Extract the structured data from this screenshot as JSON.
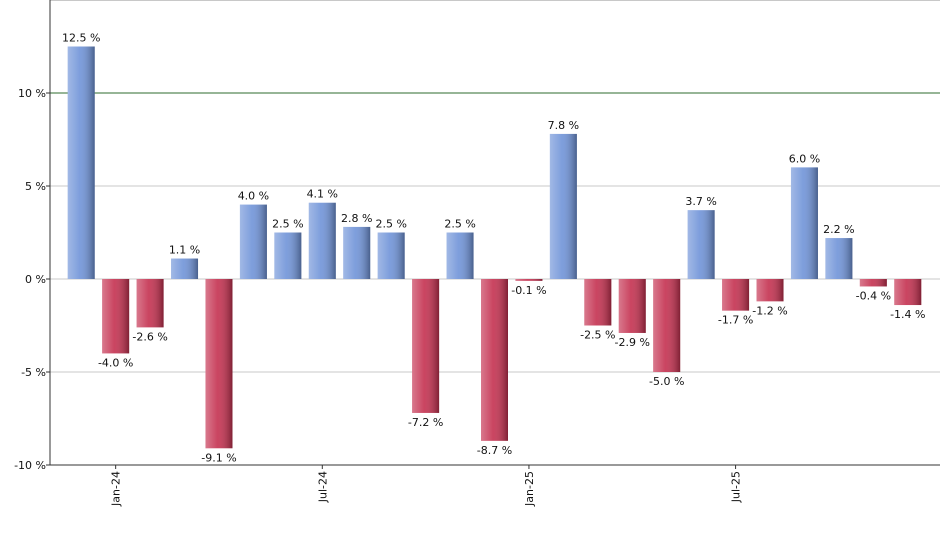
{
  "chart_data": {
    "type": "bar",
    "categories": [
      null,
      "Jan-24",
      null,
      null,
      null,
      null,
      null,
      "Jul-24",
      null,
      null,
      null,
      null,
      null,
      "Jan-25",
      null,
      null,
      null,
      null,
      null,
      "Jul-25",
      null,
      null,
      null,
      null,
      null
    ],
    "values": [
      12.5,
      -4.0,
      -2.6,
      1.1,
      -9.1,
      4.0,
      2.5,
      4.1,
      2.8,
      2.5,
      -7.2,
      2.5,
      -8.7,
      -0.1,
      7.8,
      -2.5,
      -2.9,
      -5.0,
      3.7,
      -1.7,
      -1.2,
      6.0,
      2.2,
      -0.4,
      -1.4
    ],
    "value_labels": [
      "12.5 %",
      "-4.0 %",
      "-2.6 %",
      "1.1 %",
      "-9.1 %",
      "4.0 %",
      "2.5 %",
      "4.1 %",
      "2.8 %",
      "2.5 %",
      "-7.2 %",
      "2.5 %",
      "-8.7 %",
      "-0.1 %",
      "7.8 %",
      "-2.5 %",
      "-2.9 %",
      "-5.0 %",
      "3.7 %",
      "-1.7 %",
      "-1.2 %",
      "6.0 %",
      "2.2 %",
      "-0.4 %",
      "-1.4 %"
    ],
    "positive_color": "#6f93d8",
    "negative_color": "#c4304f",
    "ylim": [
      -10,
      15
    ],
    "yticks": [
      {
        "value": -10,
        "label": "-10 %"
      },
      {
        "value": -5,
        "label": "-5 %"
      },
      {
        "value": 0,
        "label": "0 %"
      },
      {
        "value": 5,
        "label": "5 %"
      },
      {
        "value": 10,
        "label": "10 %"
      }
    ],
    "grid": true,
    "reference_line": {
      "value": 10,
      "color": "#2e6b2e"
    }
  }
}
